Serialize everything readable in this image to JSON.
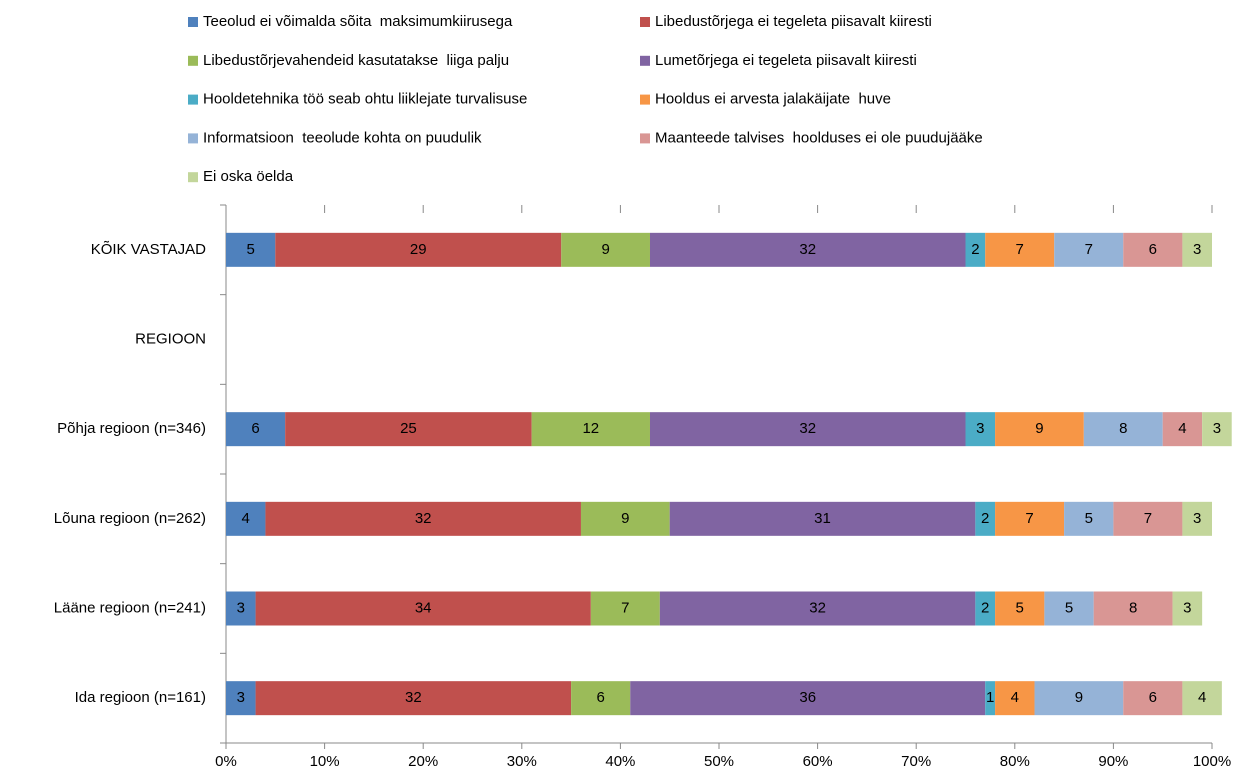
{
  "chart_data": {
    "type": "stacked-barh",
    "categories": [
      "KÕIK VASTAJAD",
      "REGIOON",
      "Põhja regioon (n=346)",
      "Lõuna regioon (n=262)",
      "Lääne regioon (n=241)",
      "Ida regioon (n=161)"
    ],
    "series": [
      {
        "name": "Teeolud ei võimalda sõita  maksimumkiirusega",
        "color": "#4f81bd",
        "values": [
          5,
          null,
          6,
          4,
          3,
          3
        ]
      },
      {
        "name": "Libedustõrjega ei tegeleta piisavalt kiiresti",
        "color": "#c0504d",
        "values": [
          29,
          null,
          25,
          32,
          34,
          32
        ]
      },
      {
        "name": "Libedustõrjevahendeid kasutatakse  liiga palju",
        "color": "#9bbb59",
        "values": [
          9,
          null,
          12,
          9,
          7,
          6
        ]
      },
      {
        "name": "Lumetõrjega ei tegeleta piisavalt kiiresti",
        "color": "#8064a2",
        "values": [
          32,
          null,
          32,
          31,
          32,
          36
        ]
      },
      {
        "name": "Hooldetehnika töö seab ohtu liiklejate turvalisuse",
        "color": "#4bacc6",
        "values": [
          2,
          null,
          3,
          2,
          2,
          1
        ]
      },
      {
        "name": "Hooldus ei arvesta jalakäijate  huve",
        "color": "#f79646",
        "values": [
          7,
          null,
          9,
          7,
          5,
          4
        ]
      },
      {
        "name": "Informatsioon  teeolude kohta on puudulik",
        "color": "#95b3d7",
        "values": [
          7,
          null,
          8,
          5,
          5,
          9
        ]
      },
      {
        "name": "Maanteede talvises  hoolduses ei ole puudujääke",
        "color": "#d99694",
        "values": [
          6,
          null,
          4,
          7,
          8,
          6
        ]
      },
      {
        "name": "Ei oska öelda",
        "color": "#c3d69b",
        "values": [
          3,
          null,
          3,
          3,
          3,
          4
        ]
      }
    ],
    "xlim": [
      0,
      100
    ],
    "xticks": [
      {
        "value": 0,
        "label": "0%"
      },
      {
        "value": 10,
        "label": "10%"
      },
      {
        "value": 20,
        "label": "20%"
      },
      {
        "value": 30,
        "label": "30%"
      },
      {
        "value": 40,
        "label": "40%"
      },
      {
        "value": 50,
        "label": "50%"
      },
      {
        "value": 60,
        "label": "60%"
      },
      {
        "value": 70,
        "label": "70%"
      },
      {
        "value": 80,
        "label": "80%"
      },
      {
        "value": 90,
        "label": "90%"
      },
      {
        "value": 100,
        "label": "100%"
      }
    ],
    "legend": "top"
  }
}
